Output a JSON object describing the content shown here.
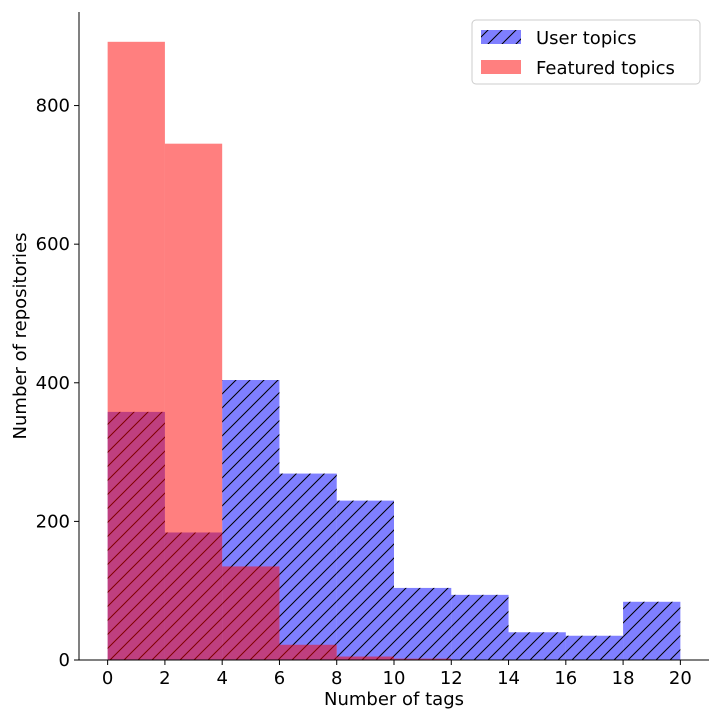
{
  "chart_data": {
    "type": "bar",
    "title": "",
    "xlabel": "Number of tags",
    "ylabel": "Number of repositories",
    "bin_edges": [
      0,
      2,
      4,
      6,
      8,
      10,
      12,
      14,
      16,
      18,
      20
    ],
    "xlim": [
      -1,
      21
    ],
    "ylim": [
      0,
      935
    ],
    "xticks": [
      0,
      2,
      4,
      6,
      8,
      10,
      12,
      14,
      16,
      18,
      20
    ],
    "yticks": [
      0,
      200,
      400,
      600,
      800
    ],
    "grid": false,
    "legend_position": "upper right",
    "series": [
      {
        "name": "User topics",
        "color": "#0000ff",
        "opacity": 0.5,
        "hatch": "diagonal",
        "values": [
          358,
          184,
          404,
          269,
          230,
          104,
          94,
          40,
          35,
          84
        ]
      },
      {
        "name": "Featured topics",
        "color": "#ff0000",
        "opacity": 0.5,
        "hatch": "none",
        "values": [
          892,
          745,
          135,
          22,
          5,
          2,
          0,
          0,
          0,
          0
        ]
      }
    ]
  }
}
